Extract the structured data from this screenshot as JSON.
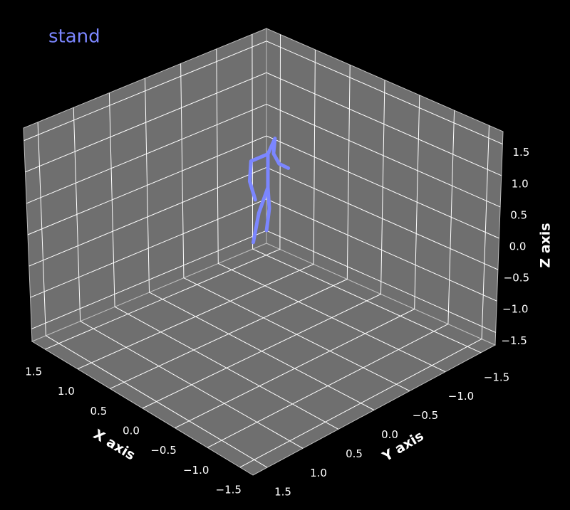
{
  "chart_data": {
    "type": "line3d",
    "title": "stand",
    "xlabel": "X axis",
    "ylabel": "Y axis",
    "zlabel": "Z axis",
    "xlim": [
      -1.7,
      1.7
    ],
    "ylim": [
      -1.7,
      1.7
    ],
    "zlim": [
      -1.7,
      1.7
    ],
    "xticks": [
      {
        "value": -1.5,
        "label": "−1.5"
      },
      {
        "value": -1,
        "label": "−1.0"
      },
      {
        "value": -0.5,
        "label": "−0.5"
      },
      {
        "value": 0,
        "label": "0.0"
      },
      0.5,
      {
        "value": 1,
        "label": "1.0"
      },
      1.5
    ],
    "yticks": [
      {
        "value": -1.5,
        "label": "−1.5"
      },
      {
        "value": -1,
        "label": "−1.0"
      },
      {
        "value": -0.5,
        "label": "−0.5"
      },
      {
        "value": 0,
        "label": "0.0"
      },
      0.5,
      {
        "value": 1,
        "label": "1.0"
      },
      1.5
    ],
    "zticks": [
      {
        "value": -1.5,
        "label": "−1.5"
      },
      {
        "value": -1,
        "label": "−1.0"
      },
      {
        "value": -0.5,
        "label": "−0.5"
      },
      {
        "value": 0,
        "label": "0.0"
      },
      0.5,
      {
        "value": 1,
        "label": "1.0"
      },
      1.5
    ],
    "grid": true,
    "color": "#7b86ff",
    "x": [
      1.36,
      1.36,
      1.36,
      1.36,
      1.36,
      1.36,
      1.36,
      1.36,
      null,
      1.36,
      1.36,
      1.36,
      1.36,
      null,
      1.36,
      1.36,
      1.36
    ],
    "y": [
      -1.68,
      -1.55,
      -1.47,
      -1.49,
      -1.39,
      -1.15,
      -1.13,
      -1.21,
      null,
      -1.39,
      -1.39,
      -1.41,
      -1.37,
      null,
      -1.39,
      -1.26,
      -1.18
    ],
    "z": [
      -0.34,
      -0.21,
      -0.01,
      0.22,
      0.02,
      0.02,
      -0.29,
      -0.62,
      null,
      0.02,
      -0.51,
      -0.85,
      -1.18,
      null,
      -0.51,
      -0.85,
      -1.28
    ]
  }
}
